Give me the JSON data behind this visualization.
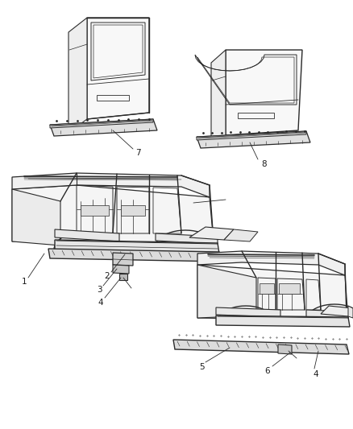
{
  "background_color": "#ffffff",
  "line_color": "#2a2a2a",
  "label_color": "#1a1a1a",
  "figure_width": 4.38,
  "figure_height": 5.33,
  "dpi": 100,
  "font_size": 7.5
}
